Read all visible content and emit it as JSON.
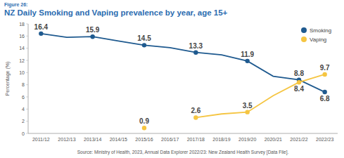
{
  "chart_data": {
    "type": "line",
    "figure_label": "Figure 26:",
    "title": "NZ Daily Smoking and Vaping prevalence by year, age 15+",
    "y_label": "Percentage (%)",
    "source": "Source: Ministry of Health, 2023, Annual Data Explorer 2022/23: New Zealand Health Survey [Data File].",
    "categories": [
      "2011/12",
      "2012/13",
      "2013/14",
      "2014/15",
      "2015/16",
      "2016/17",
      "2017/18",
      "2018/19",
      "2019/20",
      "2020/21",
      "2021/22",
      "2022/23"
    ],
    "series": [
      {
        "name": "Smoking",
        "color": "#1f5a8f",
        "marker": "circle",
        "values": [
          16.4,
          15.8,
          15.9,
          15.2,
          14.5,
          14.1,
          13.3,
          12.9,
          11.9,
          9.4,
          8.8,
          6.8
        ],
        "value_labels": [
          "16.4",
          null,
          "15.9",
          null,
          "14.5",
          null,
          "13.3",
          null,
          "11.9",
          null,
          "8.8",
          "6.8"
        ]
      },
      {
        "name": "Vaping",
        "color": "#f5c542",
        "marker": "circle",
        "values": [
          null,
          null,
          null,
          null,
          0.9,
          null,
          2.6,
          3.2,
          3.5,
          6.2,
          8.4,
          9.7
        ],
        "value_labels": [
          null,
          null,
          null,
          null,
          "0.9",
          null,
          "2.6",
          null,
          "3.5",
          null,
          "8.4",
          "9.7"
        ]
      }
    ],
    "ylim": [
      0,
      18
    ],
    "yticks": [
      0,
      2,
      4,
      6,
      8,
      10,
      12,
      14,
      16,
      18
    ],
    "grid": false,
    "legend": "top-right",
    "data_labels": true
  }
}
